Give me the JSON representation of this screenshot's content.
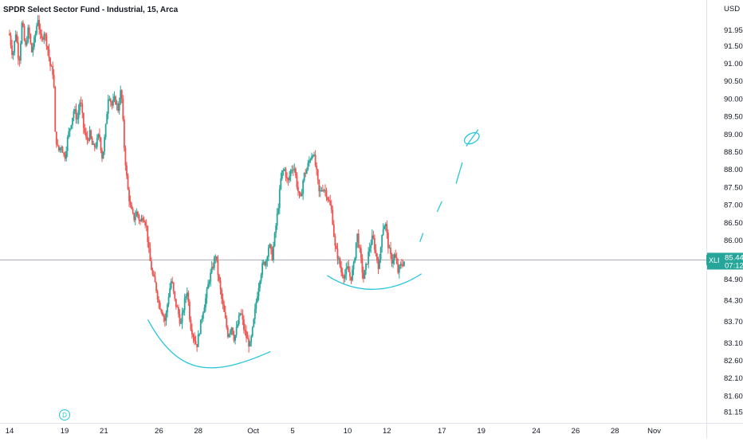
{
  "chart_data": {
    "type": "candlestick",
    "title": "SPDR Select Sector Fund - Industrial, 15, Arca",
    "currency": "USD",
    "ticker": "XLI",
    "last_price": "85.44",
    "countdown": "07:12",
    "event_badge": "D",
    "ylim": [
      80.9,
      92.6
    ],
    "x_domain": [
      0,
      43
    ],
    "y_ticks": [
      "91.95",
      "91.50",
      "91.00",
      "90.50",
      "90.00",
      "89.50",
      "89.00",
      "88.50",
      "88.00",
      "87.50",
      "87.00",
      "86.50",
      "86.00",
      "85.44",
      "84.90",
      "84.30",
      "83.70",
      "83.10",
      "82.60",
      "82.10",
      "81.60",
      "81.15"
    ],
    "y_tick_values": [
      91.95,
      91.5,
      91.0,
      90.5,
      90.0,
      89.5,
      89.0,
      88.5,
      88.0,
      87.5,
      87.0,
      86.5,
      86.0,
      85.44,
      84.9,
      84.3,
      83.7,
      83.1,
      82.6,
      82.1,
      81.6,
      81.15
    ],
    "x_ticks": [
      {
        "label": "14",
        "x": 0.0
      },
      {
        "label": "19",
        "x": 3.5
      },
      {
        "label": "21",
        "x": 6.0
      },
      {
        "label": "26",
        "x": 9.5
      },
      {
        "label": "28",
        "x": 12.0
      },
      {
        "label": "Oct",
        "x": 15.5
      },
      {
        "label": "5",
        "x": 18.0
      },
      {
        "label": "10",
        "x": 21.5
      },
      {
        "label": "12",
        "x": 24.0
      },
      {
        "label": "17",
        "x": 27.5
      },
      {
        "label": "19",
        "x": 30.0
      },
      {
        "label": "24",
        "x": 33.5
      },
      {
        "label": "26",
        "x": 36.0
      },
      {
        "label": "28",
        "x": 38.5
      },
      {
        "label": "Nov",
        "x": 41.0
      }
    ],
    "colors": {
      "up": "#26a69a",
      "down": "#ef5350",
      "drawing": "#26c6da",
      "price_line": "#a8abb8",
      "price_tag": "#26a69a",
      "text": "#131722"
    },
    "series": [
      {
        "name": "XLI",
        "path": [
          [
            0.0,
            91.8
          ],
          [
            0.2,
            91.2
          ],
          [
            0.4,
            91.9
          ],
          [
            0.6,
            91.0
          ],
          [
            0.8,
            92.2
          ],
          [
            1.0,
            91.4
          ],
          [
            1.2,
            92.0
          ],
          [
            1.4,
            91.3
          ],
          [
            1.6,
            91.7
          ],
          [
            1.8,
            92.3
          ],
          [
            2.0,
            91.6
          ],
          [
            2.2,
            91.9
          ],
          [
            2.4,
            91.5
          ],
          [
            2.6,
            90.9
          ],
          [
            2.8,
            90.7
          ],
          [
            2.9,
            89.0
          ],
          [
            3.1,
            88.5
          ],
          [
            3.3,
            88.7
          ],
          [
            3.5,
            88.3
          ],
          [
            3.7,
            88.9
          ],
          [
            3.9,
            89.3
          ],
          [
            4.1,
            89.7
          ],
          [
            4.3,
            89.4
          ],
          [
            4.5,
            90.0
          ],
          [
            4.7,
            89.2
          ],
          [
            4.9,
            88.8
          ],
          [
            5.1,
            89.0
          ],
          [
            5.3,
            88.6
          ],
          [
            5.5,
            88.7
          ],
          [
            5.7,
            89.0
          ],
          [
            5.9,
            88.3
          ],
          [
            6.1,
            89.1
          ],
          [
            6.3,
            90.2
          ],
          [
            6.5,
            89.8
          ],
          [
            6.7,
            90.0
          ],
          [
            6.9,
            89.7
          ],
          [
            7.1,
            90.3
          ],
          [
            7.3,
            88.6
          ],
          [
            7.5,
            87.5
          ],
          [
            7.7,
            86.9
          ],
          [
            7.9,
            86.6
          ],
          [
            8.1,
            86.8
          ],
          [
            8.3,
            86.5
          ],
          [
            8.5,
            86.7
          ],
          [
            8.7,
            86.4
          ],
          [
            8.9,
            85.5
          ],
          [
            9.1,
            85.0
          ],
          [
            9.3,
            84.7
          ],
          [
            9.5,
            84.2
          ],
          [
            9.7,
            84.0
          ],
          [
            9.9,
            83.7
          ],
          [
            10.1,
            84.4
          ],
          [
            10.3,
            84.9
          ],
          [
            10.5,
            84.3
          ],
          [
            10.7,
            84.0
          ],
          [
            10.9,
            83.6
          ],
          [
            11.1,
            84.2
          ],
          [
            11.3,
            84.6
          ],
          [
            11.5,
            83.6
          ],
          [
            11.7,
            83.3
          ],
          [
            11.9,
            83.0
          ],
          [
            12.1,
            83.5
          ],
          [
            12.3,
            84.0
          ],
          [
            12.5,
            84.4
          ],
          [
            12.7,
            84.9
          ],
          [
            12.9,
            85.2
          ],
          [
            13.1,
            85.6
          ],
          [
            13.3,
            84.9
          ],
          [
            13.5,
            84.3
          ],
          [
            13.7,
            83.8
          ],
          [
            13.9,
            83.3
          ],
          [
            14.1,
            83.6
          ],
          [
            14.3,
            83.2
          ],
          [
            14.5,
            83.6
          ],
          [
            14.7,
            84.0
          ],
          [
            14.9,
            83.5
          ],
          [
            15.1,
            83.2
          ],
          [
            15.3,
            83.0
          ],
          [
            15.5,
            83.6
          ],
          [
            15.7,
            84.3
          ],
          [
            15.9,
            84.9
          ],
          [
            16.1,
            85.3
          ],
          [
            16.3,
            85.4
          ],
          [
            16.5,
            85.9
          ],
          [
            16.7,
            85.5
          ],
          [
            17.1,
            87.0
          ],
          [
            17.3,
            87.9
          ],
          [
            17.5,
            88.0
          ],
          [
            17.7,
            87.6
          ],
          [
            17.9,
            88.0
          ],
          [
            18.1,
            88.1
          ],
          [
            18.3,
            87.5
          ],
          [
            18.5,
            87.1
          ],
          [
            18.7,
            87.8
          ],
          [
            18.9,
            88.0
          ],
          [
            19.1,
            88.3
          ],
          [
            19.3,
            88.5
          ],
          [
            19.5,
            88.0
          ],
          [
            19.7,
            87.3
          ],
          [
            19.9,
            87.5
          ],
          [
            20.1,
            87.4
          ],
          [
            20.3,
            87.1
          ],
          [
            20.5,
            86.8
          ],
          [
            20.7,
            85.8
          ],
          [
            20.9,
            85.5
          ],
          [
            21.1,
            85.1
          ],
          [
            21.3,
            85.0
          ],
          [
            21.5,
            85.2
          ],
          [
            21.7,
            84.9
          ],
          [
            21.9,
            85.3
          ],
          [
            22.1,
            86.2
          ],
          [
            22.3,
            85.6
          ],
          [
            22.5,
            84.9
          ],
          [
            22.7,
            85.3
          ],
          [
            22.9,
            85.8
          ],
          [
            23.1,
            86.1
          ],
          [
            23.3,
            85.6
          ],
          [
            23.5,
            85.2
          ],
          [
            23.7,
            86.3
          ],
          [
            23.9,
            86.5
          ],
          [
            24.1,
            85.8
          ],
          [
            24.3,
            85.4
          ],
          [
            24.5,
            85.6
          ],
          [
            24.7,
            85.1
          ],
          [
            24.9,
            85.3
          ],
          [
            25.1,
            85.4
          ]
        ]
      }
    ],
    "annotations": [
      {
        "name": "left-rounding-bottom-arc",
        "points": [
          [
            8.8,
            83.75
          ],
          [
            10.8,
            82.1
          ],
          [
            13.0,
            82.15
          ],
          [
            16.6,
            82.85
          ]
        ]
      },
      {
        "name": "right-rounding-bottom-arc",
        "points": [
          [
            20.2,
            85.0
          ],
          [
            22.3,
            84.4
          ],
          [
            24.5,
            84.55
          ],
          [
            26.2,
            85.05
          ]
        ]
      },
      {
        "name": "projection-dash-segments",
        "dashes": [
          [
            [
              26.1,
              85.95
            ],
            [
              26.3,
              86.2
            ]
          ],
          [
            [
              27.2,
              86.8
            ],
            [
              27.5,
              87.1
            ]
          ],
          [
            [
              28.4,
              87.6
            ],
            [
              28.8,
              88.2
            ]
          ]
        ]
      },
      {
        "name": "target-marker",
        "center": [
          29.4,
          88.88
        ]
      }
    ]
  }
}
